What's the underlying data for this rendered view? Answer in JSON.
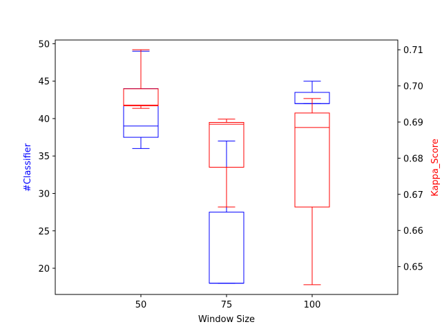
{
  "chart_data": {
    "type": "box",
    "title": "",
    "xlabel": "Window Size",
    "ylabel_left": "#Classifier",
    "ylabel_right": "Kappa_Score",
    "categories": [
      "50",
      "75",
      "100"
    ],
    "ylim_left": [
      16.5,
      50.5
    ],
    "ylim_right": [
      0.6423,
      0.7127
    ],
    "yticks_left": [
      "20",
      "25",
      "30",
      "35",
      "40",
      "45",
      "50"
    ],
    "yticks_right": [
      "0.65",
      "0.66",
      "0.67",
      "0.68",
      "0.69",
      "0.70",
      "0.71"
    ],
    "grid": false,
    "series": [
      {
        "name": "#Classifier",
        "axis": "left",
        "color": "#0000ff",
        "boxes": [
          {
            "category": "50",
            "whislo": 36,
            "q1": 37.5,
            "median": 39,
            "q3": 44,
            "whishi": 49
          },
          {
            "category": "75",
            "whislo": 18,
            "q1": 18,
            "median": 18,
            "q3": 27.5,
            "whishi": 37
          },
          {
            "category": "100",
            "whislo": 42,
            "q1": 42,
            "median": 42,
            "q3": 43.5,
            "whishi": 45
          }
        ]
      },
      {
        "name": "Kappa_Score",
        "axis": "right",
        "color": "#ff0000",
        "boxes": [
          {
            "category": "50",
            "whislo": 0.6938,
            "q1": 0.6945,
            "median": 0.6947,
            "q3": 0.6992,
            "whishi": 0.71
          },
          {
            "category": "75",
            "whislo": 0.6665,
            "q1": 0.6775,
            "median": 0.6894,
            "q3": 0.6899,
            "whishi": 0.6908
          },
          {
            "category": "100",
            "whislo": 0.645,
            "q1": 0.6665,
            "median": 0.6885,
            "q3": 0.6925,
            "whishi": 0.6965
          }
        ]
      }
    ]
  }
}
